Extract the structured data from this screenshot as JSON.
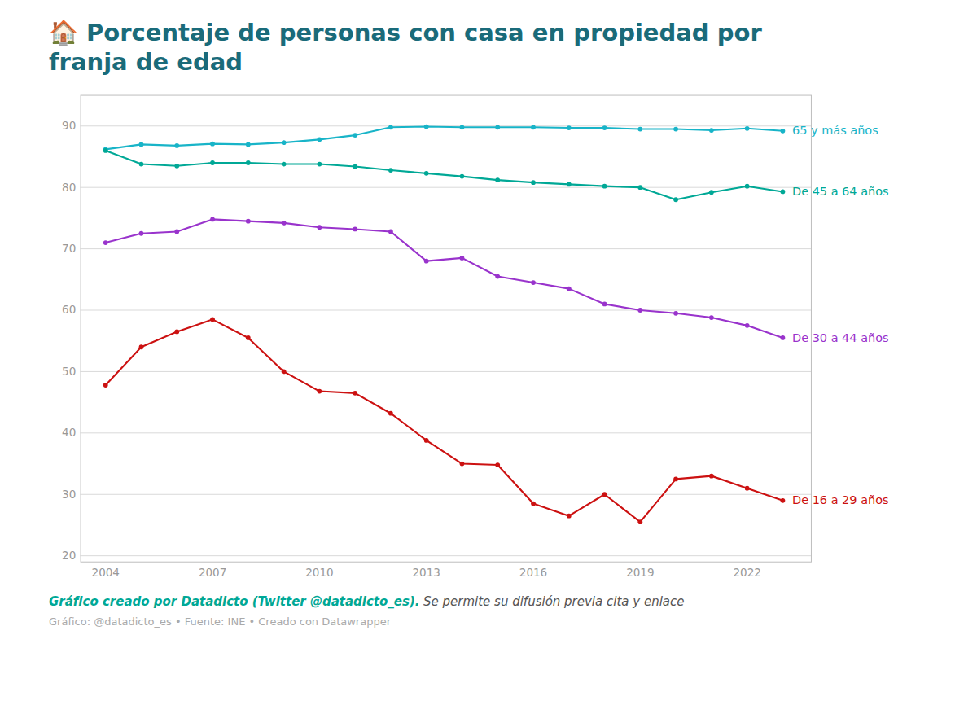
{
  "chart_data": {
    "type": "line",
    "title": "🏠 Porcentaje de personas con casa en propiedad por franja de edad",
    "x": [
      2004,
      2005,
      2006,
      2007,
      2008,
      2009,
      2010,
      2011,
      2012,
      2013,
      2014,
      2015,
      2016,
      2017,
      2018,
      2019,
      2020,
      2021,
      2022,
      2023
    ],
    "series": [
      {
        "name": "65 y más años",
        "color": "#18b4c8",
        "marker": "circle",
        "values": [
          86.2,
          87.0,
          86.8,
          87.1,
          87.0,
          87.3,
          87.8,
          88.5,
          89.8,
          89.9,
          89.8,
          89.8,
          89.8,
          89.7,
          89.7,
          89.5,
          89.5,
          89.3,
          89.6,
          89.2
        ]
      },
      {
        "name": "De 45 a 64 años",
        "color": "#00a896",
        "marker": "circle",
        "values": [
          86.0,
          83.8,
          83.5,
          84.0,
          84.0,
          83.8,
          83.8,
          83.4,
          82.8,
          82.3,
          81.8,
          81.2,
          80.8,
          80.5,
          80.2,
          80.0,
          78.0,
          79.2,
          80.2,
          79.3
        ]
      },
      {
        "name": "De 30 a 44 años",
        "color": "#9933cc",
        "marker": "circle",
        "values": [
          71.0,
          72.5,
          72.8,
          74.8,
          74.5,
          74.2,
          73.5,
          73.2,
          72.8,
          68.0,
          68.5,
          65.5,
          64.5,
          63.5,
          61.0,
          60.0,
          59.5,
          58.8,
          57.5,
          55.5
        ]
      },
      {
        "name": "De 16 a 29 años",
        "color": "#cc1111",
        "marker": "circle",
        "values": [
          47.8,
          54.0,
          56.5,
          58.5,
          55.5,
          50.0,
          46.8,
          46.5,
          43.2,
          38.8,
          35.0,
          34.8,
          28.5,
          26.5,
          30.0,
          25.5,
          32.5,
          33.0,
          31.0,
          29.0
        ]
      }
    ],
    "xlim": [
      2003.3,
      2023.8
    ],
    "xticks": [
      2004,
      2007,
      2010,
      2013,
      2016,
      2019,
      2022
    ],
    "ylim": [
      19,
      95
    ],
    "yticks": [
      20,
      30,
      40,
      50,
      60,
      70,
      80,
      90
    ],
    "grid": true,
    "annotations": [
      "Gráfico creado por Datadicto (Twitter @datadicto_es).",
      "Se permite su difusión previa cita y enlace",
      "Gráfico: @datadicto_es • Fuente: INE • Creado con Datawrapper"
    ]
  }
}
